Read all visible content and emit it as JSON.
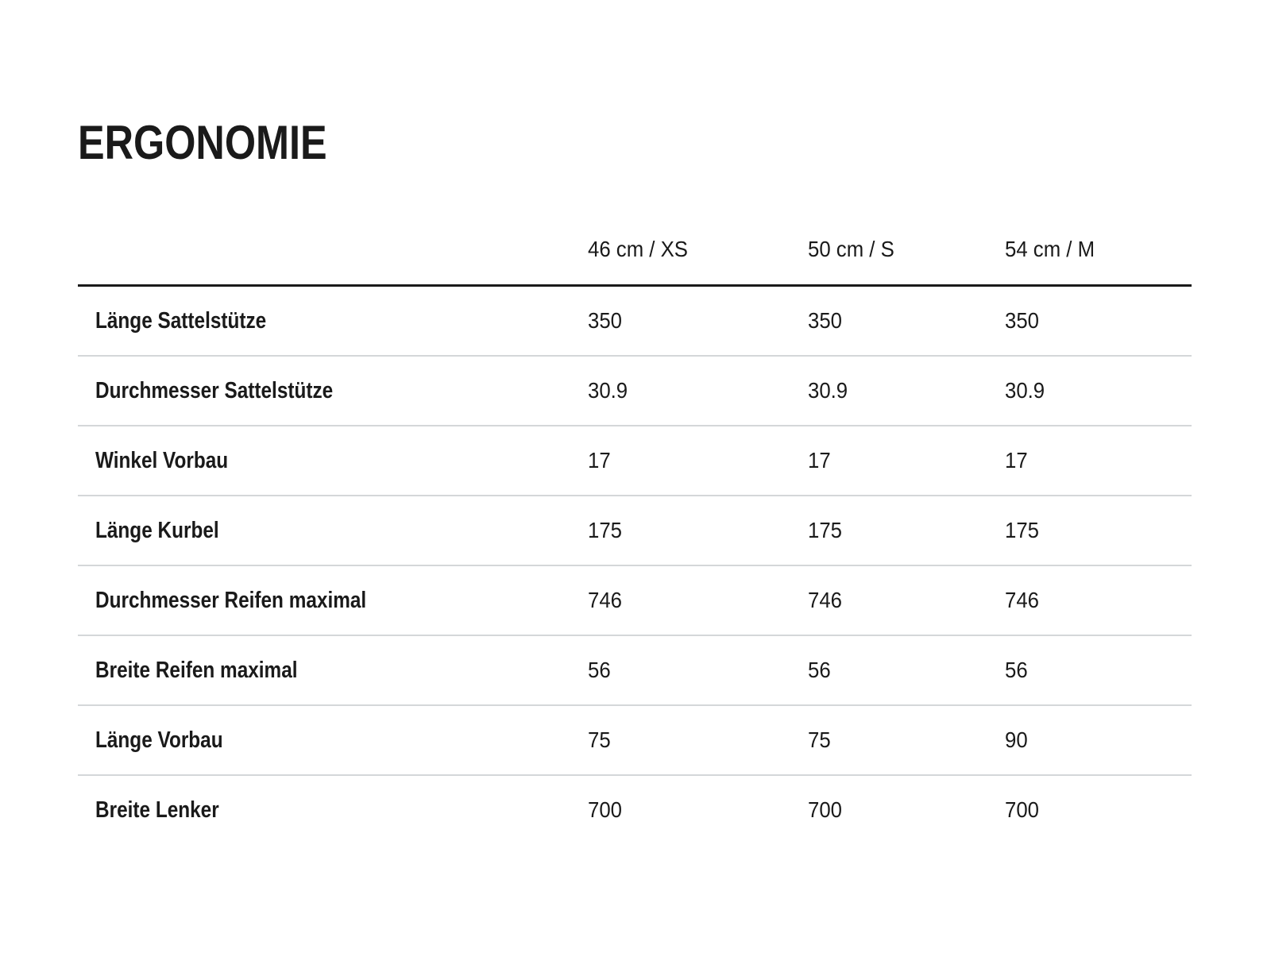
{
  "page": {
    "title": "ERGONOMIE"
  },
  "table": {
    "columns": [
      "46 cm / XS",
      "50 cm / S",
      "54 cm / M"
    ],
    "rows": [
      {
        "label": "Länge Sattelstütze",
        "values": [
          "350",
          "350",
          "350"
        ]
      },
      {
        "label": "Durchmesser Sattelstütze",
        "values": [
          "30.9",
          "30.9",
          "30.9"
        ]
      },
      {
        "label": "Winkel Vorbau",
        "values": [
          "17",
          "17",
          "17"
        ]
      },
      {
        "label": "Länge Kurbel",
        "values": [
          "175",
          "175",
          "175"
        ]
      },
      {
        "label": "Durchmesser Reifen maximal",
        "values": [
          "746",
          "746",
          "746"
        ]
      },
      {
        "label": "Breite Reifen maximal",
        "values": [
          "56",
          "56",
          "56"
        ]
      },
      {
        "label": "Länge Vorbau",
        "values": [
          "75",
          "75",
          "90"
        ]
      },
      {
        "label": "Breite Lenker",
        "values": [
          "700",
          "700",
          "700"
        ]
      }
    ]
  },
  "colors": {
    "background": "#ffffff",
    "text": "#1a1a1a",
    "header_rule": "#1a1a1a",
    "row_separator": "#d4d7d9"
  }
}
